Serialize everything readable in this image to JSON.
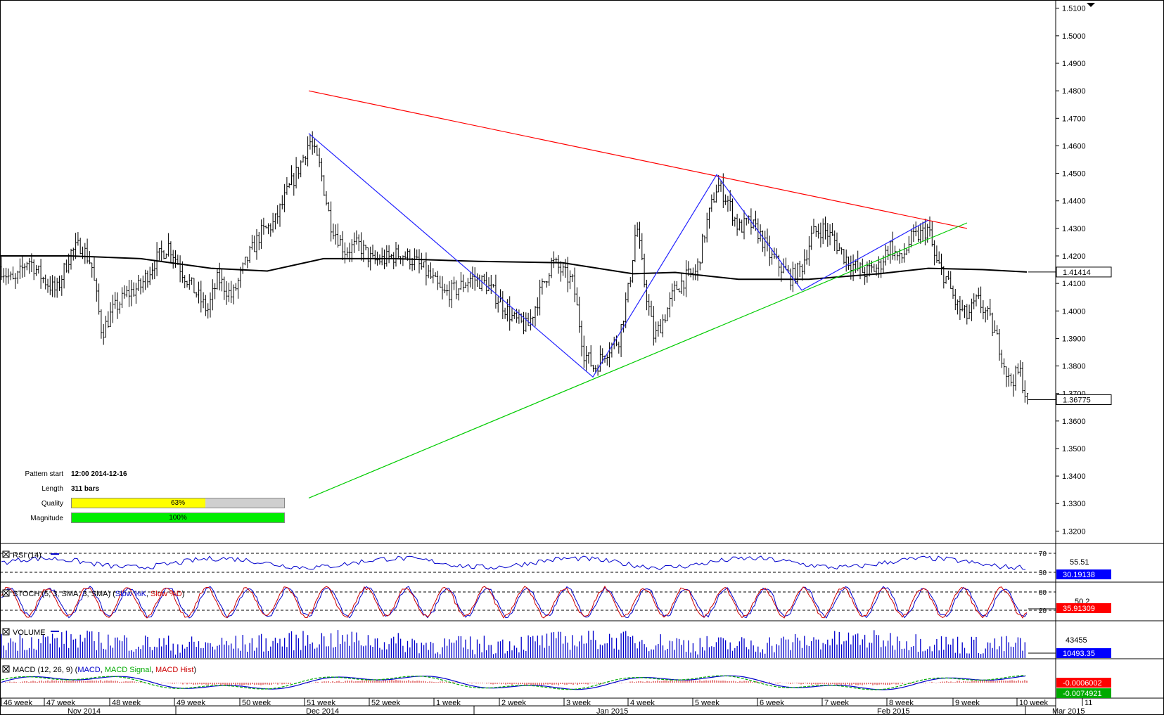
{
  "chart_data": {
    "type": "candlestick",
    "symbol_price_label": "1.36775",
    "reference_price_label": "1.41414",
    "y_ticks": [
      "1.5100",
      "1.5000",
      "1.4900",
      "1.4800",
      "1.4700",
      "1.4600",
      "1.4500",
      "1.4400",
      "1.4300",
      "1.4200",
      "1.4100",
      "1.4000",
      "1.3900",
      "1.3800",
      "1.3700",
      "1.3600",
      "1.3500",
      "1.3400",
      "1.3300",
      "1.3200"
    ],
    "ylim": [
      1.3155,
      1.513
    ],
    "week_labels": [
      "46 week",
      "47 week",
      "48 week",
      "49 week",
      "50 week",
      "51 week",
      "52 week",
      "1 week",
      "2 week",
      "3 week",
      "4 week",
      "5 week",
      "6 week",
      "7 week",
      "8 week",
      "9 week",
      "10 week",
      "11"
    ],
    "month_labels": [
      "Nov 2014",
      "Dec 2014",
      "Jan 2015",
      "Feb 2015",
      "Mar 2015"
    ],
    "price_path": [
      [
        0,
        1.416
      ],
      [
        20,
        1.41
      ],
      [
        40,
        1.419
      ],
      [
        60,
        1.412
      ],
      [
        80,
        1.407
      ],
      [
        100,
        1.421
      ],
      [
        115,
        1.424
      ],
      [
        130,
        1.417
      ],
      [
        145,
        1.392
      ],
      [
        160,
        1.4
      ],
      [
        180,
        1.406
      ],
      [
        200,
        1.409
      ],
      [
        220,
        1.418
      ],
      [
        240,
        1.424
      ],
      [
        260,
        1.414
      ],
      [
        280,
        1.406
      ],
      [
        295,
        1.4
      ],
      [
        310,
        1.412
      ],
      [
        330,
        1.405
      ],
      [
        350,
        1.418
      ],
      [
        370,
        1.428
      ],
      [
        390,
        1.432
      ],
      [
        410,
        1.444
      ],
      [
        425,
        1.452
      ],
      [
        440,
        1.462
      ],
      [
        455,
        1.452
      ],
      [
        470,
        1.432
      ],
      [
        490,
        1.422
      ],
      [
        510,
        1.424
      ],
      [
        530,
        1.418
      ],
      [
        550,
        1.419
      ],
      [
        570,
        1.421
      ],
      [
        590,
        1.418
      ],
      [
        610,
        1.413
      ],
      [
        630,
        1.406
      ],
      [
        650,
        1.408
      ],
      [
        670,
        1.412
      ],
      [
        690,
        1.41
      ],
      [
        710,
        1.404
      ],
      [
        730,
        1.397
      ],
      [
        750,
        1.394
      ],
      [
        770,
        1.408
      ],
      [
        785,
        1.418
      ],
      [
        800,
        1.414
      ],
      [
        815,
        1.41
      ],
      [
        830,
        1.385
      ],
      [
        845,
        1.379
      ],
      [
        860,
        1.385
      ],
      [
        880,
        1.39
      ],
      [
        895,
        1.41
      ],
      [
        905,
        1.432
      ],
      [
        915,
        1.412
      ],
      [
        930,
        1.39
      ],
      [
        945,
        1.398
      ],
      [
        960,
        1.408
      ],
      [
        975,
        1.412
      ],
      [
        990,
        1.414
      ],
      [
        1005,
        1.432
      ],
      [
        1020,
        1.446
      ],
      [
        1035,
        1.44
      ],
      [
        1050,
        1.43
      ],
      [
        1065,
        1.432
      ],
      [
        1080,
        1.428
      ],
      [
        1095,
        1.42
      ],
      [
        1110,
        1.416
      ],
      [
        1125,
        1.412
      ],
      [
        1140,
        1.416
      ],
      [
        1155,
        1.428
      ],
      [
        1170,
        1.43
      ],
      [
        1185,
        1.426
      ],
      [
        1200,
        1.42
      ],
      [
        1215,
        1.416
      ],
      [
        1230,
        1.414
      ],
      [
        1250,
        1.416
      ],
      [
        1265,
        1.424
      ],
      [
        1280,
        1.418
      ],
      [
        1295,
        1.426
      ],
      [
        1310,
        1.428
      ],
      [
        1320,
        1.43
      ],
      [
        1330,
        1.418
      ],
      [
        1345,
        1.412
      ],
      [
        1360,
        1.402
      ],
      [
        1375,
        1.398
      ],
      [
        1390,
        1.404
      ],
      [
        1405,
        1.398
      ],
      [
        1420,
        1.388
      ],
      [
        1435,
        1.374
      ],
      [
        1450,
        1.378
      ],
      [
        1460,
        1.3677
      ]
    ],
    "moving_average": [
      [
        0,
        1.42
      ],
      [
        100,
        1.42
      ],
      [
        200,
        1.419
      ],
      [
        300,
        1.4155
      ],
      [
        380,
        1.4145
      ],
      [
        460,
        1.419
      ],
      [
        560,
        1.419
      ],
      [
        680,
        1.418
      ],
      [
        800,
        1.4175
      ],
      [
        900,
        1.4135
      ],
      [
        960,
        1.414
      ],
      [
        1050,
        1.4115
      ],
      [
        1150,
        1.4115
      ],
      [
        1250,
        1.4135
      ],
      [
        1320,
        1.4155
      ],
      [
        1400,
        1.415
      ],
      [
        1460,
        1.41414
      ]
    ],
    "pattern_lines": {
      "resistance": [
        [
          439,
          1.48
        ],
        [
          1375,
          1.43
        ]
      ],
      "support": [
        [
          439,
          1.332
        ],
        [
          1375,
          1.432
        ]
      ],
      "zigzag": [
        [
          439,
          1.4645
        ],
        [
          843,
          1.376
        ],
        [
          1019,
          1.4495
        ],
        [
          1140,
          1.4075
        ],
        [
          1320,
          1.433
        ]
      ]
    },
    "pattern_info": {
      "start_label": "Pattern start",
      "start_value": "12:00 2014-12-16",
      "length_label": "Length",
      "length_value": "311 bars",
      "quality_label": "Quality",
      "quality_value": 63,
      "quality_text": "63%",
      "magnitude_label": "Magnitude",
      "magnitude_value": 100,
      "magnitude_text": "100%"
    },
    "indicators": {
      "rsi": {
        "label": "RSI (14)",
        "levels": [
          "70",
          "30"
        ],
        "mid_label": "55.51",
        "value_label": "30.19138"
      },
      "stoch": {
        "label_parts": [
          {
            "text": "STOCH (5, 3, SMA, 3, SMA) (",
            "color": "#000"
          },
          {
            "text": "Slow %K",
            "color": "#0000cc"
          },
          {
            "text": ", ",
            "color": "#000"
          },
          {
            "text": "Slow %D",
            "color": "#cc0000"
          },
          {
            "text": ")",
            "color": "#000"
          }
        ],
        "levels": [
          "80",
          "20"
        ],
        "mid_label": "50.2",
        "value_label": "35.91309"
      },
      "volume": {
        "label": "VOLUME",
        "mid_label": "43455",
        "value_label": "10493.35"
      },
      "macd": {
        "label_parts": [
          {
            "text": "MACD (12, 26, 9) (",
            "color": "#000"
          },
          {
            "text": "MACD",
            "color": "#0000cc"
          },
          {
            "text": ", ",
            "color": "#000"
          },
          {
            "text": "MACD Signal",
            "color": "#00aa00"
          },
          {
            "text": ", ",
            "color": "#000"
          },
          {
            "text": "MACD Hist",
            "color": "#cc0000"
          },
          {
            "text": ")",
            "color": "#000"
          }
        ],
        "value_label_1": "-0.0006002",
        "value_label_2": "-0.0074921"
      }
    }
  }
}
